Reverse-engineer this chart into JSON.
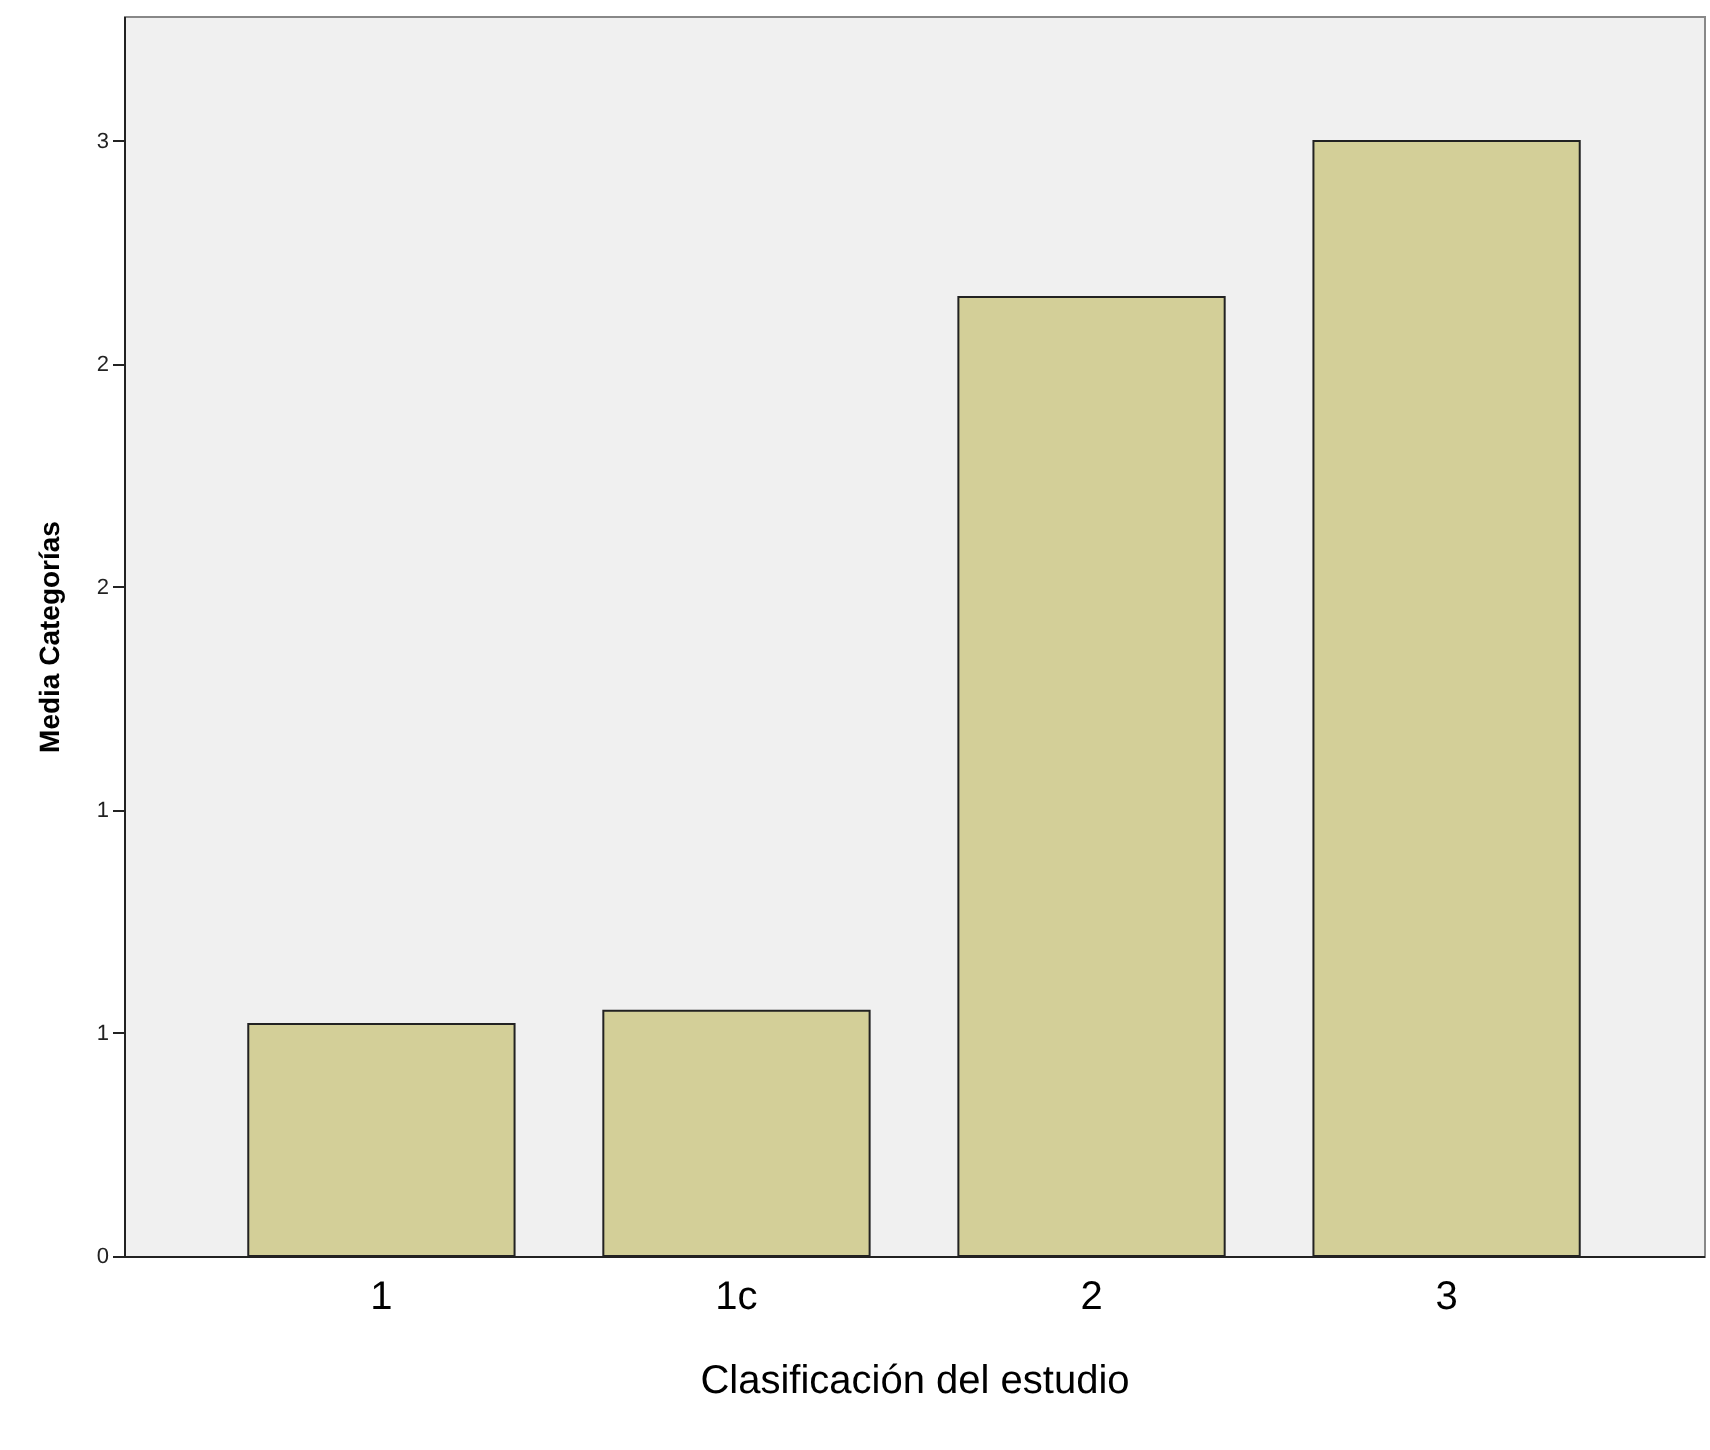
{
  "chart_data": {
    "type": "bar",
    "xlabel": "Clasificación del estudio",
    "ylabel": "Media Categorías",
    "categories": [
      "1",
      "1c",
      "2",
      "3"
    ],
    "values": [
      0.52,
      0.55,
      2.15,
      2.5
    ],
    "color": "#d3cf98",
    "ylim": [
      0,
      2.78
    ],
    "yticks": [
      0,
      {
        "value": 0.5,
        "label": "1"
      },
      {
        "value": 1,
        "label": "1"
      },
      {
        "value": 1.5,
        "label": "2"
      },
      {
        "value": 2,
        "label": "2"
      },
      {
        "value": 2.5,
        "label": "3"
      }
    ],
    "grid": false
  }
}
